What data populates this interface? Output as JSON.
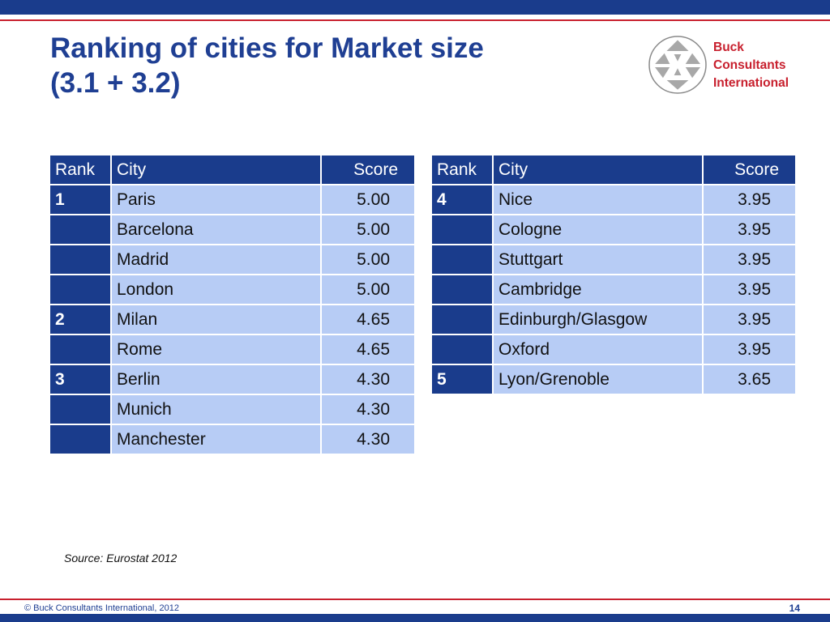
{
  "slide": {
    "title_line1": "Ranking of cities for Market size",
    "title_line2": "(3.1 + 3.2)",
    "source": "Source: Eurostat 2012",
    "copyright": "© Buck Consultants International, 2012",
    "page_number": "14"
  },
  "logo": {
    "line1": "Buck",
    "line2": "Consultants",
    "line3": "International",
    "icon": "triangles-hexagon-logo"
  },
  "colors": {
    "header_blue": "#1a3c8c",
    "cell_light_blue": "#b7ccf5",
    "title_blue": "#1f3f93",
    "accent_red": "#c8202e"
  },
  "table_headers": {
    "rank": "Rank",
    "city": "City",
    "score": "Score"
  },
  "table_left": {
    "rows": [
      {
        "rank": "1",
        "city": "Paris",
        "score": "5.00"
      },
      {
        "rank": "",
        "city": "Barcelona",
        "score": "5.00"
      },
      {
        "rank": "",
        "city": "Madrid",
        "score": "5.00"
      },
      {
        "rank": "",
        "city": "London",
        "score": "5.00"
      },
      {
        "rank": "2",
        "city": "Milan",
        "score": "4.65"
      },
      {
        "rank": "",
        "city": "Rome",
        "score": "4.65"
      },
      {
        "rank": "3",
        "city": "Berlin",
        "score": "4.30"
      },
      {
        "rank": "",
        "city": "Munich",
        "score": "4.30"
      },
      {
        "rank": "",
        "city": "Manchester",
        "score": "4.30"
      }
    ]
  },
  "table_right": {
    "rows": [
      {
        "rank": "4",
        "city": "Nice",
        "score": "3.95"
      },
      {
        "rank": "",
        "city": "Cologne",
        "score": "3.95"
      },
      {
        "rank": "",
        "city": "Stuttgart",
        "score": "3.95"
      },
      {
        "rank": "",
        "city": "Cambridge",
        "score": "3.95"
      },
      {
        "rank": "",
        "city": "Edinburgh/Glasgow",
        "score": "3.95"
      },
      {
        "rank": "",
        "city": "Oxford",
        "score": "3.95"
      },
      {
        "rank": "5",
        "city": "Lyon/Grenoble",
        "score": "3.65"
      }
    ]
  }
}
